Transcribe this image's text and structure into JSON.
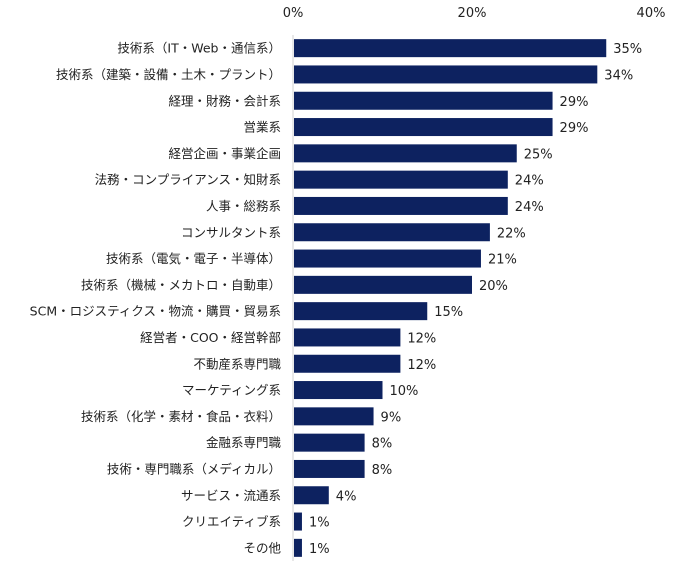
{
  "chart_data": {
    "type": "bar",
    "orientation": "horizontal",
    "categories": [
      "技術系（IT・Web・通信系）",
      "技術系（建築・設備・土木・プラント）",
      "経理・財務・会計系",
      "営業系",
      "経営企画・事業企画",
      "法務・コンプライアンス・知財系",
      "人事・総務系",
      "コンサルタント系",
      "技術系（電気・電子・半導体）",
      "技術系（機械・メカトロ・自動車）",
      "SCM・ロジスティクス・物流・購買・貿易系",
      "経営者・COO・経営幹部",
      "不動産系専門職",
      "マーケティング系",
      "技術系（化学・素材・食品・衣料）",
      "金融系専門職",
      "技術・専門職系（メディカル）",
      "サービス・流通系",
      "クリエイティブ系",
      "その他"
    ],
    "values": [
      35,
      34,
      29,
      29,
      25,
      24,
      24,
      22,
      21,
      20,
      15,
      12,
      12,
      10,
      9,
      8,
      8,
      4,
      1,
      1
    ],
    "data_labels": [
      "35%",
      "34%",
      "29%",
      "29%",
      "25%",
      "24%",
      "24%",
      "22%",
      "21%",
      "20%",
      "15%",
      "12%",
      "12%",
      "10%",
      "9%",
      "8%",
      "8%",
      "4%",
      "1%",
      "1%"
    ],
    "xlim": [
      0,
      40
    ],
    "x_ticks": [
      "0%",
      "20%",
      "40%"
    ],
    "x_tick_values": [
      0,
      20,
      40
    ],
    "axis_position": "top",
    "grid": false,
    "bar_color": "#0d2260"
  }
}
